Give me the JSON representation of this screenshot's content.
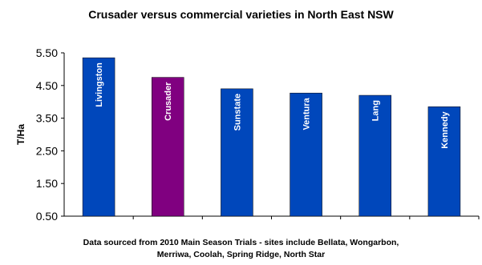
{
  "chart_data": {
    "type": "bar",
    "title": "Crusader versus commercial varieties in North East NSW",
    "ylabel": "T/Ha",
    "xlabel": "",
    "ylim": [
      0.5,
      5.5
    ],
    "yticks": [
      "0.50",
      "1.50",
      "2.50",
      "3.50",
      "4.50",
      "5.50"
    ],
    "grid": false,
    "categories": [
      "Livingston",
      "Crusader",
      "Sunstate",
      "Ventura",
      "Lang",
      "Kennedy"
    ],
    "values": [
      5.35,
      4.75,
      4.4,
      4.27,
      4.2,
      3.85
    ],
    "colors": [
      "#0047bb",
      "#800080",
      "#0047bb",
      "#0047bb",
      "#0047bb",
      "#0047bb"
    ]
  },
  "footnote": {
    "line1": "Data sourced from 2010 Main Season Trials - sites include Bellata, Wongarbon,",
    "line2": "Merriwa, Coolah, Spring Ridge, North Star"
  }
}
